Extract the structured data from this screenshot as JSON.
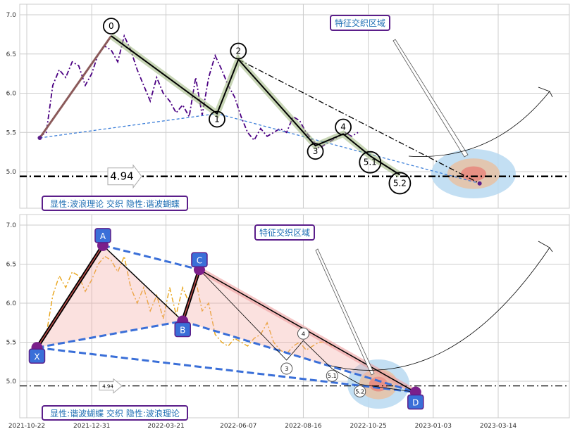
{
  "chart_data": [
    {
      "type": "line",
      "panel": "top",
      "ylim": [
        4.4,
        7.2
      ],
      "yticks": [
        "5.0",
        "5.5",
        "6.0",
        "6.5",
        "7.0"
      ],
      "grid": true,
      "hline": {
        "value": 4.94,
        "label": "4.94"
      },
      "series": [
        {
          "color": "#4b0082",
          "style": "dash-dot",
          "x": [
            "2021-11-05",
            "2021-11-12",
            "2021-11-19",
            "2021-11-26",
            "2021-12-03",
            "2021-12-10",
            "2021-12-17",
            "2021-12-24",
            "2021-12-31",
            "2022-01-07",
            "2022-01-14",
            "2022-01-21",
            "2022-01-28",
            "2022-02-04",
            "2022-02-11",
            "2022-02-18",
            "2022-02-25",
            "2022-03-04",
            "2022-03-11",
            "2022-03-18",
            "2022-03-25",
            "2022-04-01",
            "2022-04-08",
            "2022-04-15",
            "2022-04-22",
            "2022-04-29",
            "2022-05-06",
            "2022-05-13",
            "2022-05-20",
            "2022-05-27",
            "2022-06-03",
            "2022-06-10",
            "2022-06-17",
            "2022-06-24",
            "2022-07-01",
            "2022-07-08",
            "2022-07-15",
            "2022-07-22",
            "2022-07-29",
            "2022-08-05",
            "2022-08-12",
            "2022-08-19",
            "2022-08-26",
            "2022-09-02",
            "2022-09-09",
            "2022-09-16",
            "2022-09-23",
            "2022-09-30",
            "2022-10-07",
            "2022-10-14"
          ],
          "y": [
            5.45,
            5.5,
            6.1,
            6.3,
            6.2,
            6.4,
            6.35,
            6.1,
            6.25,
            6.5,
            6.6,
            6.55,
            6.4,
            6.73,
            6.55,
            6.3,
            6.1,
            5.9,
            6.2,
            6.0,
            5.9,
            5.75,
            5.85,
            5.7,
            6.2,
            5.72,
            6.2,
            6.48,
            6.3,
            6.1,
            5.95,
            5.7,
            5.5,
            5.4,
            5.55,
            5.45,
            5.5,
            5.55,
            5.5,
            5.7,
            5.65,
            5.5,
            5.4,
            5.3,
            5.35,
            5.4,
            5.45,
            5.5,
            5.45,
            5.5
          ]
        }
      ],
      "wave_points": [
        {
          "label": "0",
          "x": "2022-01-21",
          "y": 6.73
        },
        {
          "label": "1",
          "x": "2022-05-15",
          "y": 5.74
        },
        {
          "label": "2",
          "x": "2022-06-07",
          "y": 6.43
        },
        {
          "label": "3",
          "x": "2022-08-29",
          "y": 5.33
        },
        {
          "label": "4",
          "x": "2022-09-28",
          "y": 5.48
        },
        {
          "label": "5.1",
          "x": "2022-10-27",
          "y": 5.2
        },
        {
          "label": "5.2",
          "x": "2022-11-28",
          "y": 4.96
        }
      ],
      "annotations": {
        "zone_label": "特征交织区域",
        "caption": "显性:波浪理论 交织 隐性:谐波蝴蝶"
      }
    },
    {
      "type": "line",
      "panel": "bottom",
      "ylim": [
        4.4,
        7.2
      ],
      "yticks": [
        "5.0",
        "5.5",
        "6.0",
        "6.5",
        "7.0"
      ],
      "xticks": [
        "2021-10-22",
        "2021-12-31",
        "2022-03-21",
        "2022-06-07",
        "2022-08-16",
        "2022-10-25",
        "2023-01-03",
        "2023-03-14"
      ],
      "grid": true,
      "hline": {
        "value": 4.94,
        "label": "4.94"
      },
      "series": [
        {
          "color": "#e8a317",
          "style": "dash-dot",
          "x": [
            "2021-11-05",
            "2021-11-12",
            "2021-11-19",
            "2021-11-26",
            "2021-12-03",
            "2021-12-10",
            "2021-12-17",
            "2021-12-24",
            "2021-12-31",
            "2022-01-07",
            "2022-01-14",
            "2022-01-21",
            "2022-01-28",
            "2022-02-04",
            "2022-02-11",
            "2022-02-18",
            "2022-02-25",
            "2022-03-04",
            "2022-03-11",
            "2022-03-18",
            "2022-03-25",
            "2022-04-01",
            "2022-04-08",
            "2022-04-15",
            "2022-04-22",
            "2022-04-29",
            "2022-05-06",
            "2022-05-13",
            "2022-05-20",
            "2022-05-27",
            "2022-06-03",
            "2022-06-10",
            "2022-06-17",
            "2022-06-24",
            "2022-07-01",
            "2022-07-08",
            "2022-07-15",
            "2022-07-22",
            "2022-07-29",
            "2022-08-05",
            "2022-08-12",
            "2022-08-19",
            "2022-08-26",
            "2022-09-02",
            "2022-09-09",
            "2022-09-16"
          ],
          "y": [
            5.45,
            5.6,
            6.1,
            6.35,
            6.2,
            6.4,
            6.35,
            6.15,
            6.3,
            6.5,
            6.6,
            6.55,
            6.4,
            6.6,
            6.2,
            6.0,
            6.2,
            5.9,
            6.1,
            5.8,
            6.2,
            5.85,
            6.2,
            6.0,
            6.3,
            5.9,
            6.0,
            5.6,
            5.5,
            5.45,
            5.55,
            5.5,
            5.45,
            5.55,
            5.6,
            5.75,
            5.5,
            5.4,
            5.35,
            5.45,
            5.5,
            5.4,
            5.45,
            5.5,
            5.5,
            5.45
          ]
        }
      ],
      "harmonic_points": [
        {
          "label": "X",
          "x": "2021-11-02",
          "y": 5.43
        },
        {
          "label": "A",
          "x": "2022-01-12",
          "y": 6.74
        },
        {
          "label": "B",
          "x": "2022-04-08",
          "y": 5.77
        },
        {
          "label": "C",
          "x": "2022-04-26",
          "y": 6.43
        },
        {
          "label": "D",
          "x": "2022-12-15",
          "y": 4.86
        }
      ],
      "wave_points": [
        {
          "label": "3",
          "x": "2022-07-29",
          "y": 5.27
        },
        {
          "label": "4",
          "x": "2022-08-16",
          "y": 5.52
        },
        {
          "label": "5.1",
          "x": "2022-09-16",
          "y": 5.16
        },
        {
          "label": "5.2",
          "x": "2022-10-16",
          "y": 4.96
        }
      ],
      "annotations": {
        "zone_label": "特征交织区域",
        "caption": "显性:谐波蝴蝶 交织 隐性:波浪理论"
      }
    }
  ]
}
